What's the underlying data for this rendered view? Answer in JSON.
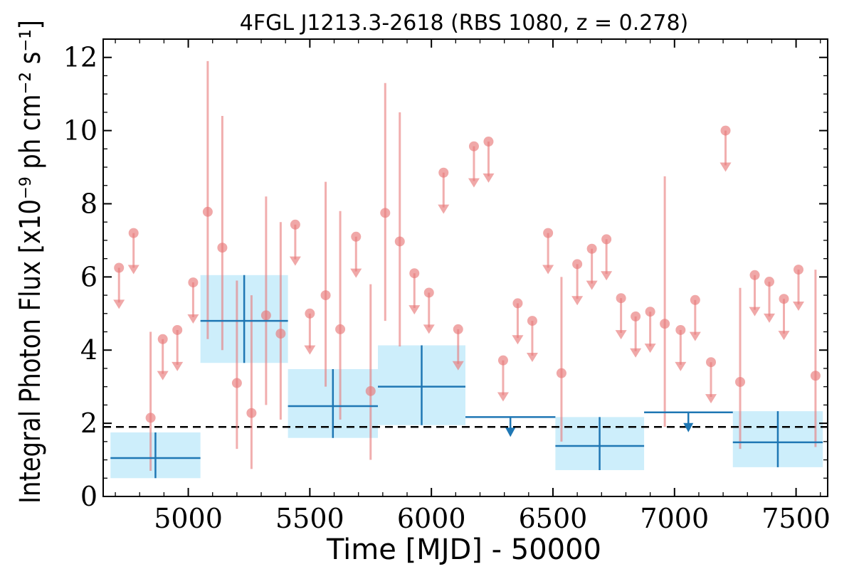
{
  "chart_data": {
    "type": "scatter",
    "title": "4FGL J1213.3-2618 (RBS 1080, z = 0.278)",
    "xlabel": "Time [MJD] - 50000",
    "ylabel": "Integral Photon Flux [x10⁻⁹ ph cm⁻² s⁻¹]",
    "xlim": [
      4650,
      7630
    ],
    "ylim": [
      0,
      12.5
    ],
    "x_ticks": [
      5000,
      5500,
      6000,
      6500,
      7000,
      7500
    ],
    "y_ticks": [
      0,
      2,
      4,
      6,
      8,
      10,
      12
    ],
    "grid": false,
    "average_flux": 1.9,
    "colors": {
      "short_bins": "#e8797a",
      "long_bins": "#1f77b4",
      "long_bins_fill": "#cdeefb",
      "average_line": "#000000"
    },
    "short_bin_detections": [
      {
        "x": 4845,
        "y": 2.15,
        "ylo": 0.7,
        "yhi": 4.5
      },
      {
        "x": 5080,
        "y": 7.78,
        "ylo": 4.3,
        "yhi": 11.9
      },
      {
        "x": 5140,
        "y": 6.8,
        "ylo": 4.0,
        "yhi": 10.4
      },
      {
        "x": 5200,
        "y": 3.1,
        "ylo": 1.3,
        "yhi": 5.9
      },
      {
        "x": 5260,
        "y": 2.28,
        "ylo": 0.75,
        "yhi": 5.5
      },
      {
        "x": 5320,
        "y": 4.95,
        "ylo": 2.5,
        "yhi": 8.2
      },
      {
        "x": 5380,
        "y": 4.45,
        "ylo": 2.1,
        "yhi": 7.5
      },
      {
        "x": 5565,
        "y": 5.5,
        "ylo": 3.0,
        "yhi": 8.6
      },
      {
        "x": 5625,
        "y": 4.57,
        "ylo": 2.1,
        "yhi": 7.8
      },
      {
        "x": 5750,
        "y": 2.88,
        "ylo": 1.0,
        "yhi": 5.8
      },
      {
        "x": 5810,
        "y": 7.75,
        "ylo": 4.8,
        "yhi": 11.3
      },
      {
        "x": 5870,
        "y": 6.97,
        "ylo": 4.1,
        "yhi": 10.5
      },
      {
        "x": 6535,
        "y": 3.37,
        "ylo": 1.5,
        "yhi": 6.0
      },
      {
        "x": 6960,
        "y": 4.72,
        "ylo": 1.9,
        "yhi": 8.75
      },
      {
        "x": 7270,
        "y": 3.13,
        "ylo": 1.3,
        "yhi": 5.7
      },
      {
        "x": 7580,
        "y": 3.3,
        "ylo": 1.35,
        "yhi": 6.2
      }
    ],
    "short_bin_upper_limits": [
      {
        "x": 4715,
        "y": 6.25
      },
      {
        "x": 4775,
        "y": 7.2
      },
      {
        "x": 4895,
        "y": 4.3
      },
      {
        "x": 4955,
        "y": 4.55
      },
      {
        "x": 5020,
        "y": 5.85
      },
      {
        "x": 5440,
        "y": 7.43
      },
      {
        "x": 5500,
        "y": 5.0
      },
      {
        "x": 5690,
        "y": 7.1
      },
      {
        "x": 5930,
        "y": 6.1
      },
      {
        "x": 5990,
        "y": 5.57
      },
      {
        "x": 6050,
        "y": 8.85
      },
      {
        "x": 6110,
        "y": 4.57
      },
      {
        "x": 6175,
        "y": 9.57
      },
      {
        "x": 6235,
        "y": 9.7
      },
      {
        "x": 6295,
        "y": 3.72
      },
      {
        "x": 6355,
        "y": 5.28
      },
      {
        "x": 6415,
        "y": 4.8
      },
      {
        "x": 6480,
        "y": 7.2
      },
      {
        "x": 6600,
        "y": 6.35
      },
      {
        "x": 6660,
        "y": 6.77
      },
      {
        "x": 6720,
        "y": 7.03
      },
      {
        "x": 6780,
        "y": 5.42
      },
      {
        "x": 6840,
        "y": 4.92
      },
      {
        "x": 6900,
        "y": 5.05
      },
      {
        "x": 7025,
        "y": 4.55
      },
      {
        "x": 7085,
        "y": 5.37
      },
      {
        "x": 7150,
        "y": 3.67
      },
      {
        "x": 7210,
        "y": 10.0
      },
      {
        "x": 7330,
        "y": 6.05
      },
      {
        "x": 7390,
        "y": 5.87
      },
      {
        "x": 7450,
        "y": 5.4
      },
      {
        "x": 7510,
        "y": 6.2
      }
    ],
    "long_bin_detections": [
      {
        "x0": 4680,
        "x1": 5050,
        "x": 4865,
        "y": 1.05,
        "ylo": 0.5,
        "yhi": 1.75
      },
      {
        "x0": 5050,
        "x1": 5410,
        "x": 5230,
        "y": 4.8,
        "ylo": 3.65,
        "yhi": 6.05
      },
      {
        "x0": 5410,
        "x1": 5780,
        "x": 5595,
        "y": 2.47,
        "ylo": 1.6,
        "yhi": 3.48
      },
      {
        "x0": 5780,
        "x1": 6140,
        "x": 5960,
        "y": 3.0,
        "ylo": 1.95,
        "yhi": 4.13
      },
      {
        "x0": 6510,
        "x1": 6875,
        "x": 6692,
        "y": 1.38,
        "ylo": 0.72,
        "yhi": 2.17
      },
      {
        "x0": 7240,
        "x1": 7610,
        "x": 7425,
        "y": 1.48,
        "ylo": 0.8,
        "yhi": 2.33
      }
    ],
    "long_bin_upper_limits": [
      {
        "x0": 6140,
        "x1": 6510,
        "x": 6325,
        "y": 2.17
      },
      {
        "x0": 6875,
        "x1": 7240,
        "x": 7057,
        "y": 2.3
      }
    ]
  }
}
